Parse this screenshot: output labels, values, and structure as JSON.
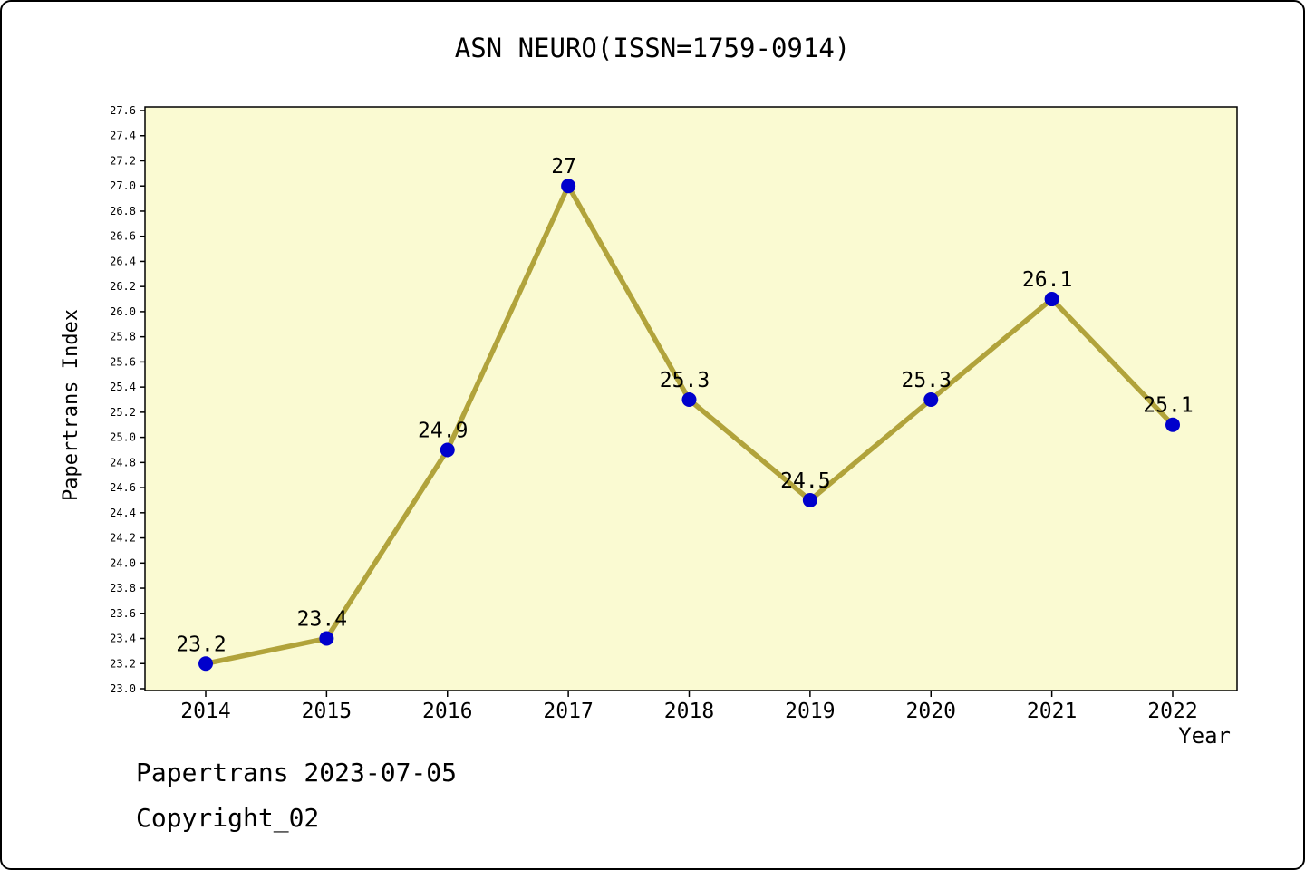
{
  "chart_data": {
    "type": "line",
    "title": "ASN NEURO(ISSN=1759-0914)",
    "xlabel": "Year",
    "ylabel": "Papertrans Index",
    "x": [
      2014,
      2015,
      2016,
      2017,
      2018,
      2019,
      2020,
      2021,
      2022
    ],
    "values": [
      23.2,
      23.4,
      24.9,
      27,
      25.3,
      24.5,
      25.3,
      26.1,
      25.1
    ],
    "point_labels": [
      "23.2",
      "23.4",
      "24.9",
      "27",
      "25.3",
      "24.5",
      "25.3",
      "26.1",
      "25.1"
    ],
    "ylim": [
      23.0,
      27.6
    ],
    "ytick_step": 0.2,
    "grid": false,
    "legend": false,
    "colors": {
      "line": "#B1A33B",
      "marker": "#0000CC",
      "plot_bg": "#FAFAD2",
      "frame": "#000000"
    }
  },
  "footer": {
    "line1": "Papertrans 2023-07-05",
    "line2": "Copyright_02"
  }
}
